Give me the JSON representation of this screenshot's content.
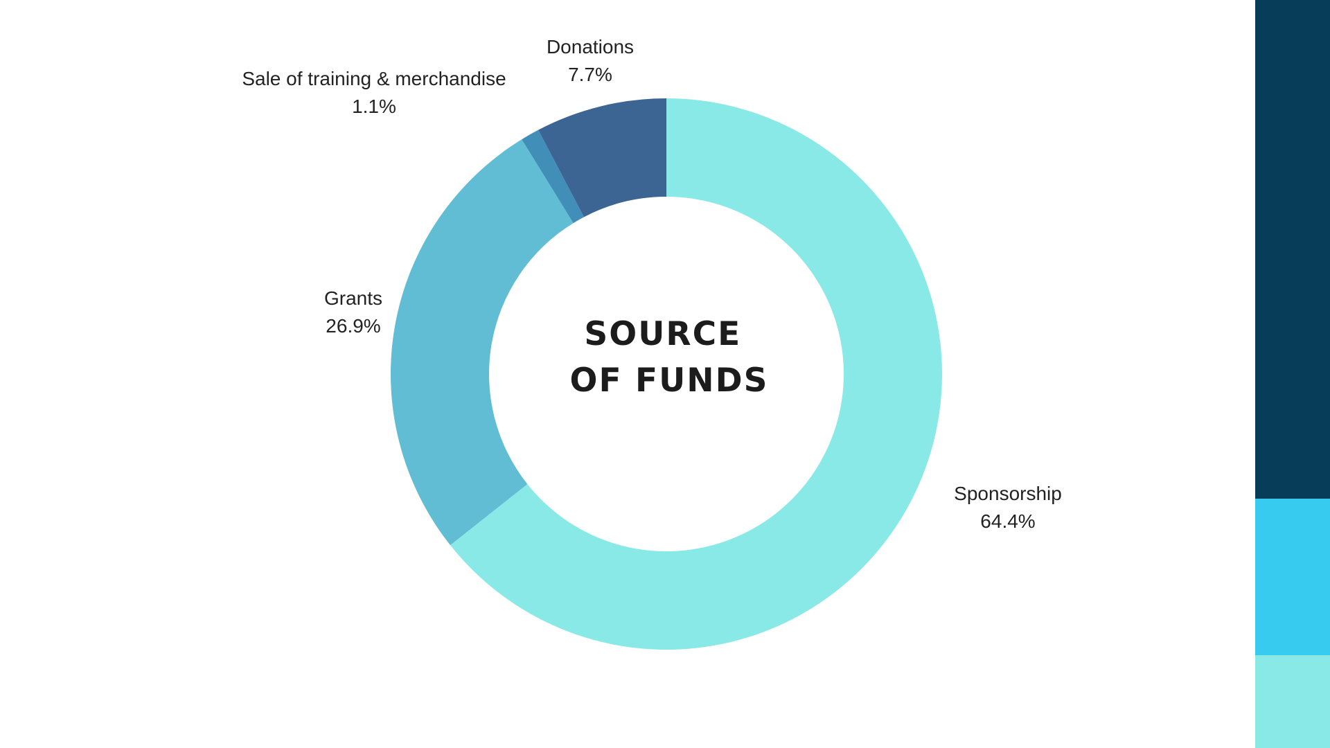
{
  "colors": {
    "background": "#ffffff",
    "sponsorship": "#89e9e7",
    "grants": "#60bdd4",
    "sale": "#418fb8",
    "donations": "#3c6594",
    "stripe_top": "#083d59",
    "stripe_mid": "#38cbf0",
    "stripe_bottom": "#89e9e7"
  },
  "chart_data": {
    "type": "pie",
    "variant": "donut",
    "center_title_lines": [
      "SOURCE",
      "OF FUNDS"
    ],
    "slices": [
      {
        "label": "Sponsorship",
        "value": 64.4,
        "display": "64.4%",
        "color": "#89e9e7"
      },
      {
        "label": "Grants",
        "value": 26.9,
        "display": "26.9%",
        "color": "#60bdd4"
      },
      {
        "label": "Sale of training & merchandise",
        "value": 1.1,
        "display": "1.1%",
        "color": "#418fb8"
      },
      {
        "label": "Donations",
        "value": 7.7,
        "display": "7.7%",
        "color": "#3c6594"
      }
    ],
    "start_angle": "12 o'clock",
    "direction": "clockwise",
    "legend": "none"
  }
}
